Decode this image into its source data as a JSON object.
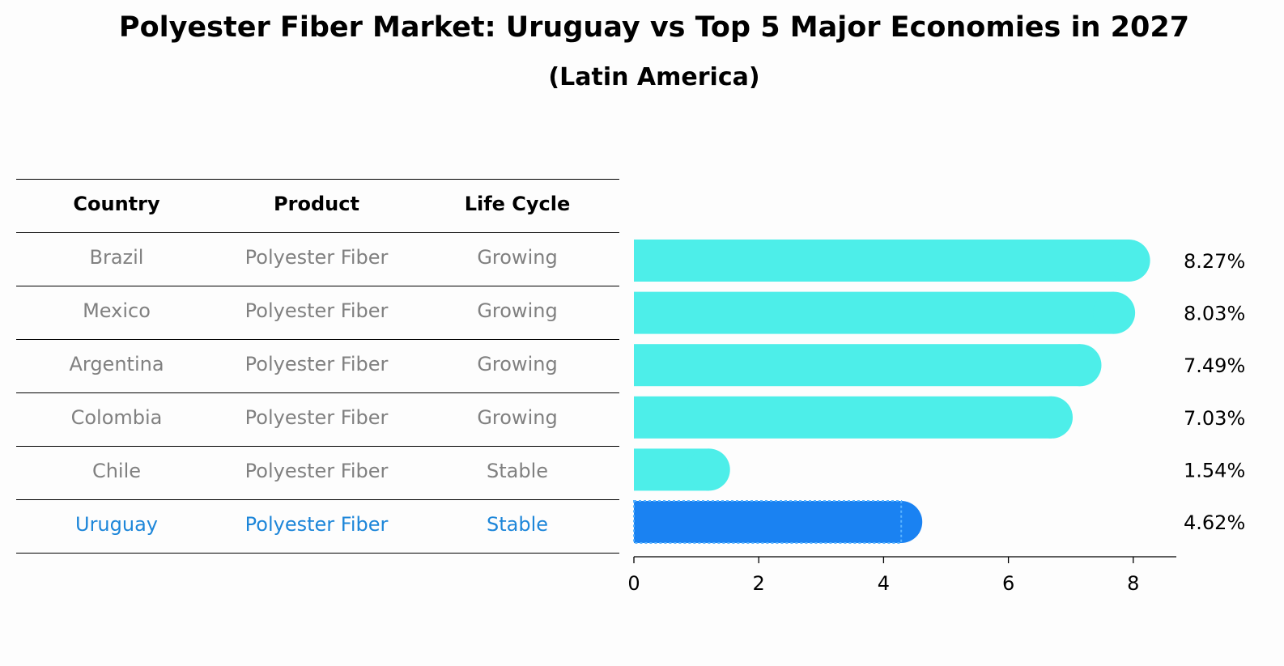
{
  "title": "Polyester Fiber Market: Uruguay vs Top 5 Major Economies in 2027",
  "subtitle": "(Latin America)",
  "table": {
    "headers": [
      "Country",
      "Product",
      "Life Cycle"
    ],
    "rows": [
      {
        "country": "Brazil",
        "product": "Polyester Fiber",
        "life_cycle": "Growing"
      },
      {
        "country": "Mexico",
        "product": "Polyester Fiber",
        "life_cycle": "Growing"
      },
      {
        "country": "Argentina",
        "product": "Polyester Fiber",
        "life_cycle": "Growing"
      },
      {
        "country": "Colombia",
        "product": "Polyester Fiber",
        "life_cycle": "Growing"
      },
      {
        "country": "Chile",
        "product": "Polyester Fiber",
        "life_cycle": "Stable"
      },
      {
        "country": "Uruguay",
        "product": "Polyester Fiber",
        "life_cycle": "Stable"
      }
    ]
  },
  "colors": {
    "bar": "#4deee9",
    "highlight_bar": "#1a82f2",
    "highlight_text": "#1d86d9",
    "muted_text": "#808080"
  },
  "chart_data": {
    "type": "bar",
    "orientation": "horizontal",
    "title": "Polyester Fiber Market: Uruguay vs Top 5 Major Economies in 2027",
    "subtitle": "(Latin America)",
    "categories": [
      "Brazil",
      "Mexico",
      "Argentina",
      "Colombia",
      "Chile",
      "Uruguay"
    ],
    "values": [
      8.27,
      8.03,
      7.49,
      7.03,
      1.54,
      4.62
    ],
    "labels": [
      "8.27%",
      "8.03%",
      "7.49%",
      "7.03%",
      "1.54%",
      "4.62%"
    ],
    "highlight": "Uruguay",
    "xlim": [
      0,
      8.7
    ],
    "xticks": [
      0,
      2,
      4,
      6,
      8
    ],
    "xlabel": "",
    "ylabel": "",
    "grid": false
  }
}
